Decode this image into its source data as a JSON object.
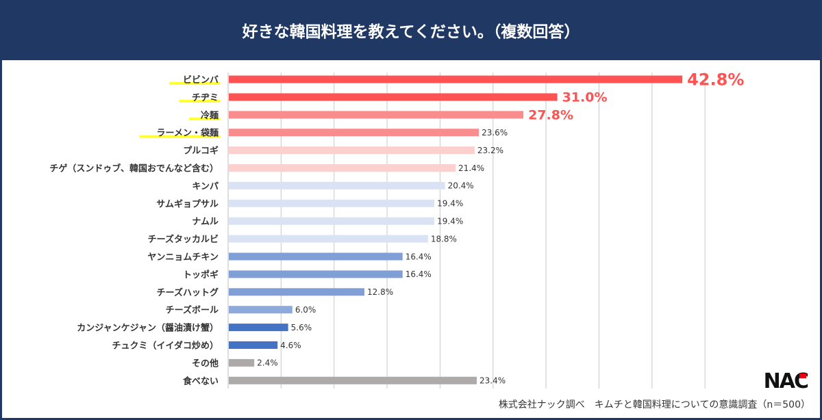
{
  "header": {
    "title": "好きな韓国料理を教えてください。（複数回答）"
  },
  "source": "株式会社ナック調べ　キムチと韓国料理についての意識調査（n＝500）",
  "logo": "NAC",
  "chart_data": {
    "type": "bar",
    "orientation": "horizontal",
    "title": "好きな韓国料理を教えてください。（複数回答）",
    "xlim": [
      0,
      45
    ],
    "grid": true,
    "unit": "%",
    "categories": [
      "ビビンバ",
      "チヂミ",
      "冷麺",
      "ラーメン・袋麺",
      "プルコギ",
      "チゲ（スンドゥブ、韓国おでんなど含む）",
      "キンパ",
      "サムギョプサル",
      "ナムル",
      "チーズタッカルビ",
      "ヤンニョムチキン",
      "トッポギ",
      "チーズハットグ",
      "チーズボール",
      "カンジャンケジャン（醤油漬け蟹）",
      "チュクミ（イイダコ炒め）",
      "その他",
      "食べない"
    ],
    "values": [
      42.8,
      31.0,
      27.8,
      23.6,
      23.2,
      21.4,
      20.4,
      19.4,
      19.4,
      18.8,
      16.4,
      16.4,
      12.8,
      6.0,
      5.6,
      4.6,
      2.4,
      23.4
    ],
    "labels": [
      "42.8%",
      "31.0%",
      "27.8%",
      "23.6%",
      "23.2%",
      "21.4%",
      "20.4%",
      "19.4%",
      "19.4%",
      "18.8%",
      "16.4%",
      "16.4%",
      "12.8%",
      "6.0%",
      "5.6%",
      "4.6%",
      "2.4%",
      "23.4%"
    ],
    "colors": [
      "#ff5252",
      "#ff5252",
      "#f98d8d",
      "#f98d8d",
      "#fdd0d0",
      "#fdd0d0",
      "#dae3f3",
      "#dae3f3",
      "#dae3f3",
      "#dae3f3",
      "#7f9fd6",
      "#7f9fd6",
      "#7f9fd6",
      "#8eaadc",
      "#4472c4",
      "#4472c4",
      "#aeaaaa",
      "#aeaaaa"
    ],
    "highlighted": [
      "ビビンバ",
      "チヂミ",
      "冷麺",
      "ラーメン・袋麺"
    ],
    "highlight_color": "#ffff33",
    "emphasis_label_color": "#ff5252"
  }
}
